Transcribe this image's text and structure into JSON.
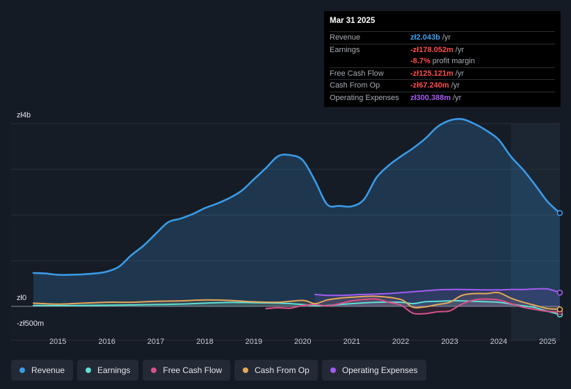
{
  "tooltip": {
    "date": "Mar 31 2025",
    "rows": [
      {
        "label": "Revenue",
        "value": "zł2.043b",
        "unit": "/yr",
        "color": "#3fa2f0"
      },
      {
        "label": "Earnings",
        "value": "-zł178.052m",
        "unit": "/yr",
        "color": "#ff4d4d"
      },
      {
        "label": "",
        "value": "-8.7%",
        "unit": "profit margin",
        "color": "#ff4d4d"
      },
      {
        "label": "Free Cash Flow",
        "value": "-zł125.121m",
        "unit": "/yr",
        "color": "#ff4d4d"
      },
      {
        "label": "Cash From Op",
        "value": "-zł67.240m",
        "unit": "/yr",
        "color": "#ff4d4d"
      },
      {
        "label": "Operating Expenses",
        "value": "zł300.388m",
        "unit": "/yr",
        "color": "#a45cf2"
      }
    ]
  },
  "legend": [
    {
      "label": "Revenue",
      "color": "#3a9be8"
    },
    {
      "label": "Earnings",
      "color": "#5ee0d5"
    },
    {
      "label": "Free Cash Flow",
      "color": "#d9518a"
    },
    {
      "label": "Cash From Op",
      "color": "#e6a85c"
    },
    {
      "label": "Operating Expenses",
      "color": "#a45cf2"
    }
  ],
  "chart_data": {
    "type": "area",
    "title": "",
    "ylabel": "",
    "ylim": [
      -500,
      4000
    ],
    "xlim": [
      2014.5,
      2025.25
    ],
    "y_tick_labels": [
      {
        "label": "zł4b",
        "value": 4000
      },
      {
        "label": "zł0",
        "value": 0
      },
      {
        "label": "-zł500m",
        "value": -500
      }
    ],
    "x_ticks": [
      2015,
      2016,
      2017,
      2018,
      2019,
      2020,
      2021,
      2022,
      2023,
      2024,
      2025
    ],
    "x_tick_labels": [
      "2015",
      "2016",
      "2017",
      "2018",
      "2019",
      "2020",
      "2021",
      "2022",
      "2023",
      "2024",
      "2025"
    ],
    "forecast_shade_from": 2024.25,
    "series": [
      {
        "name": "Revenue",
        "color": "#3a9be8",
        "filled": true,
        "x": [
          2014.5,
          2014.75,
          2015.0,
          2015.25,
          2015.5,
          2015.75,
          2016.0,
          2016.25,
          2016.5,
          2016.75,
          2017.0,
          2017.25,
          2017.5,
          2017.75,
          2018.0,
          2018.25,
          2018.5,
          2018.75,
          2019.0,
          2019.25,
          2019.5,
          2019.75,
          2020.0,
          2020.25,
          2020.5,
          2020.75,
          2021.0,
          2021.25,
          2021.5,
          2021.75,
          2022.0,
          2022.25,
          2022.5,
          2022.75,
          2023.0,
          2023.25,
          2023.5,
          2023.75,
          2024.0,
          2024.25,
          2024.5,
          2024.75,
          2025.0,
          2025.25
        ],
        "values": [
          730,
          720,
          690,
          690,
          700,
          720,
          760,
          870,
          1120,
          1330,
          1590,
          1840,
          1920,
          2020,
          2150,
          2250,
          2370,
          2530,
          2780,
          3030,
          3290,
          3310,
          3200,
          2750,
          2230,
          2200,
          2190,
          2340,
          2810,
          3080,
          3280,
          3460,
          3670,
          3930,
          4070,
          4100,
          4000,
          3850,
          3650,
          3280,
          2990,
          2650,
          2290,
          2043
        ]
      },
      {
        "name": "Earnings",
        "color": "#5ee0d5",
        "filled": false,
        "x": [
          2014.5,
          2015.0,
          2015.5,
          2016.0,
          2016.5,
          2017.0,
          2017.5,
          2018.0,
          2018.5,
          2019.0,
          2019.5,
          2020.0,
          2020.25,
          2020.5,
          2020.75,
          2021.0,
          2021.5,
          2022.0,
          2022.25,
          2022.5,
          2022.75,
          2023.0,
          2023.25,
          2023.5,
          2023.75,
          2024.0,
          2024.25,
          2024.5,
          2024.75,
          2025.0,
          2025.25
        ],
        "values": [
          20,
          15,
          20,
          25,
          30,
          40,
          50,
          70,
          85,
          80,
          70,
          40,
          10,
          20,
          40,
          60,
          90,
          90,
          60,
          100,
          110,
          120,
          120,
          110,
          100,
          90,
          50,
          10,
          -30,
          -110,
          -178
        ]
      },
      {
        "name": "Free Cash Flow",
        "color": "#d9518a",
        "filled": false,
        "x": [
          2019.25,
          2019.5,
          2019.75,
          2020.0,
          2020.25,
          2020.5,
          2020.75,
          2021.0,
          2021.25,
          2021.5,
          2021.75,
          2022.0,
          2022.25,
          2022.5,
          2022.75,
          2023.0,
          2023.25,
          2023.5,
          2023.75,
          2024.0,
          2024.25,
          2024.5,
          2024.75,
          2025.0,
          2025.25
        ],
        "values": [
          -50,
          -30,
          -40,
          20,
          40,
          10,
          60,
          120,
          150,
          160,
          90,
          30,
          -150,
          -160,
          -120,
          -100,
          50,
          140,
          160,
          140,
          60,
          -20,
          -70,
          -110,
          -125
        ]
      },
      {
        "name": "Cash From Op",
        "color": "#e6a85c",
        "filled": false,
        "x": [
          2014.5,
          2015.0,
          2015.5,
          2016.0,
          2016.5,
          2017.0,
          2017.5,
          2018.0,
          2018.5,
          2019.0,
          2019.5,
          2020.0,
          2020.25,
          2020.5,
          2020.75,
          2021.0,
          2021.5,
          2022.0,
          2022.25,
          2022.5,
          2022.75,
          2023.0,
          2023.25,
          2023.5,
          2023.75,
          2024.0,
          2024.25,
          2024.5,
          2024.75,
          2025.0,
          2025.25
        ],
        "values": [
          70,
          50,
          70,
          90,
          90,
          110,
          120,
          140,
          130,
          100,
          90,
          130,
          60,
          140,
          180,
          200,
          220,
          150,
          -20,
          -10,
          40,
          90,
          240,
          280,
          280,
          300,
          180,
          90,
          20,
          -50,
          -67
        ]
      },
      {
        "name": "Operating Expenses",
        "color": "#a45cf2",
        "filled": false,
        "x": [
          2020.25,
          2020.5,
          2020.75,
          2021.0,
          2021.25,
          2021.5,
          2021.75,
          2022.0,
          2022.25,
          2022.5,
          2022.75,
          2023.0,
          2023.25,
          2023.5,
          2023.75,
          2024.0,
          2024.25,
          2024.5,
          2024.75,
          2025.0,
          2025.25
        ],
        "values": [
          260,
          240,
          240,
          250,
          260,
          270,
          280,
          300,
          320,
          340,
          360,
          370,
          370,
          365,
          360,
          360,
          370,
          370,
          380,
          380,
          300
        ]
      }
    ]
  }
}
